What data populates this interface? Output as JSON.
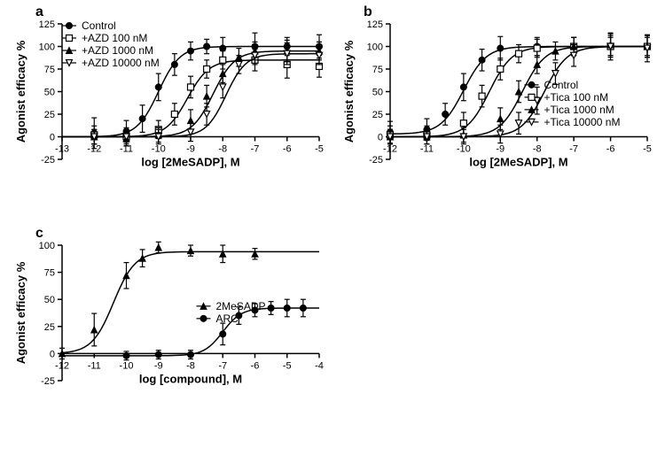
{
  "panels": {
    "a": {
      "label": "a",
      "type": "scatter-doseresponse",
      "x_title": "log [2MeSADP], M",
      "y_title": "Agonist efficacy %",
      "xlim": [
        -13,
        -5
      ],
      "ylim": [
        -25,
        125
      ],
      "xticks": [
        -13,
        -12,
        -11,
        -10,
        -9,
        -8,
        -7,
        -6,
        -5
      ],
      "yticks": [
        -25,
        0,
        25,
        50,
        75,
        100,
        125
      ],
      "background_color": "#ffffff",
      "axis_color": "#000000",
      "legend_pos": "top-left",
      "series": [
        {
          "name": "Control",
          "marker": "circle-filled",
          "color": "#000000",
          "points": [
            {
              "x": -12,
              "y": 4,
              "err": 17
            },
            {
              "x": -11,
              "y": 6,
              "err": 12
            },
            {
              "x": -10.5,
              "y": 20,
              "err": 15
            },
            {
              "x": -10,
              "y": 55,
              "err": 15
            },
            {
              "x": -9.5,
              "y": 80,
              "err": 12
            },
            {
              "x": -9,
              "y": 95,
              "err": 10
            },
            {
              "x": -8.5,
              "y": 100,
              "err": 8
            },
            {
              "x": -8,
              "y": 98,
              "err": 12
            },
            {
              "x": -7,
              "y": 100,
              "err": 15
            },
            {
              "x": -6,
              "y": 100,
              "err": 10
            },
            {
              "x": -5,
              "y": 100,
              "err": 13
            }
          ],
          "ec50": -10,
          "hill": 1.3,
          "bottom": 0,
          "top": 100
        },
        {
          "name": "+AZD 100 nM",
          "marker": "square-open",
          "color": "#000000",
          "points": [
            {
              "x": -12,
              "y": 2,
              "err": 10
            },
            {
              "x": -11,
              "y": 0,
              "err": 10
            },
            {
              "x": -10,
              "y": 8,
              "err": 10
            },
            {
              "x": -9.5,
              "y": 25,
              "err": 12
            },
            {
              "x": -9,
              "y": 55,
              "err": 12
            },
            {
              "x": -8.5,
              "y": 75,
              "err": 10
            },
            {
              "x": -8,
              "y": 85,
              "err": 10
            },
            {
              "x": -7,
              "y": 85,
              "err": 12
            },
            {
              "x": -6,
              "y": 80,
              "err": 15
            },
            {
              "x": -5,
              "y": 78,
              "err": 12
            }
          ],
          "ec50": -9.1,
          "hill": 1.3,
          "bottom": 0,
          "top": 85
        },
        {
          "name": "+AZD 1000 nM",
          "marker": "triangle-filled",
          "color": "#000000",
          "points": [
            {
              "x": -12,
              "y": 0,
              "err": 8
            },
            {
              "x": -11,
              "y": -2,
              "err": 8
            },
            {
              "x": -10,
              "y": 2,
              "err": 8
            },
            {
              "x": -9,
              "y": 18,
              "err": 12
            },
            {
              "x": -8.5,
              "y": 45,
              "err": 12
            },
            {
              "x": -8,
              "y": 70,
              "err": 10
            },
            {
              "x": -7.5,
              "y": 88,
              "err": 10
            },
            {
              "x": -7,
              "y": 95,
              "err": 10
            },
            {
              "x": -6,
              "y": 95,
              "err": 12
            },
            {
              "x": -5,
              "y": 95,
              "err": 10
            }
          ],
          "ec50": -8.3,
          "hill": 1.3,
          "bottom": 0,
          "top": 95
        },
        {
          "name": "+AZD 10000 nM",
          "marker": "triangle-down-open",
          "color": "#000000",
          "points": [
            {
              "x": -12,
              "y": 0,
              "err": 8
            },
            {
              "x": -11,
              "y": 0,
              "err": 8
            },
            {
              "x": -10,
              "y": 0,
              "err": 8
            },
            {
              "x": -9,
              "y": 5,
              "err": 10
            },
            {
              "x": -8.5,
              "y": 25,
              "err": 12
            },
            {
              "x": -8,
              "y": 55,
              "err": 12
            },
            {
              "x": -7.5,
              "y": 80,
              "err": 10
            },
            {
              "x": -7,
              "y": 90,
              "err": 10
            },
            {
              "x": -6,
              "y": 92,
              "err": 12
            },
            {
              "x": -5,
              "y": 90,
              "err": 10
            }
          ],
          "ec50": -7.9,
          "hill": 1.4,
          "bottom": 0,
          "top": 92
        }
      ]
    },
    "b": {
      "label": "b",
      "type": "scatter-doseresponse",
      "x_title": "log [2MeSADP], M",
      "y_title": "Agonist efficacy %",
      "xlim": [
        -12,
        -5
      ],
      "ylim": [
        -25,
        125
      ],
      "xticks": [
        -12,
        -11,
        -10,
        -9,
        -8,
        -7,
        -6,
        -5
      ],
      "yticks": [
        -25,
        0,
        25,
        50,
        75,
        100,
        125
      ],
      "background_color": "#ffffff",
      "axis_color": "#000000",
      "legend_pos": "mid-right",
      "series": [
        {
          "name": "Control",
          "marker": "circle-filled",
          "color": "#000000",
          "points": [
            {
              "x": -12,
              "y": 5,
              "err": 12
            },
            {
              "x": -11,
              "y": 8,
              "err": 12
            },
            {
              "x": -10.5,
              "y": 25,
              "err": 12
            },
            {
              "x": -10,
              "y": 55,
              "err": 15
            },
            {
              "x": -9.5,
              "y": 85,
              "err": 12
            },
            {
              "x": -9,
              "y": 98,
              "err": 13
            },
            {
              "x": -8,
              "y": 100,
              "err": 10
            },
            {
              "x": -7,
              "y": 100,
              "err": 10
            },
            {
              "x": -6,
              "y": 100,
              "err": 10
            },
            {
              "x": -5,
              "y": 100,
              "err": 12
            }
          ],
          "ec50": -10,
          "hill": 1.4,
          "bottom": 3,
          "top": 100
        },
        {
          "name": "+Tica 100 nM",
          "marker": "square-open",
          "color": "#000000",
          "points": [
            {
              "x": -12,
              "y": 2,
              "err": 10
            },
            {
              "x": -11,
              "y": 2,
              "err": 10
            },
            {
              "x": -10,
              "y": 15,
              "err": 12
            },
            {
              "x": -9.5,
              "y": 45,
              "err": 12
            },
            {
              "x": -9,
              "y": 75,
              "err": 12
            },
            {
              "x": -8.5,
              "y": 92,
              "err": 10
            },
            {
              "x": -8,
              "y": 98,
              "err": 10
            },
            {
              "x": -7,
              "y": 100,
              "err": 10
            },
            {
              "x": -6,
              "y": 100,
              "err": 12
            },
            {
              "x": -5,
              "y": 100,
              "err": 10
            }
          ],
          "ec50": -9.3,
          "hill": 1.4,
          "bottom": 0,
          "top": 100
        },
        {
          "name": "+Tica 1000 nM",
          "marker": "triangle-filled",
          "color": "#000000",
          "points": [
            {
              "x": -12,
              "y": 0,
              "err": 8
            },
            {
              "x": -11,
              "y": 0,
              "err": 8
            },
            {
              "x": -10,
              "y": 2,
              "err": 8
            },
            {
              "x": -9,
              "y": 20,
              "err": 12
            },
            {
              "x": -8.5,
              "y": 50,
              "err": 12
            },
            {
              "x": -8,
              "y": 80,
              "err": 10
            },
            {
              "x": -7.5,
              "y": 95,
              "err": 10
            },
            {
              "x": -7,
              "y": 100,
              "err": 10
            },
            {
              "x": -6,
              "y": 102,
              "err": 12
            },
            {
              "x": -5,
              "y": 100,
              "err": 12
            }
          ],
          "ec50": -8.4,
          "hill": 1.4,
          "bottom": 0,
          "top": 100
        },
        {
          "name": "+Tica 10000 nM",
          "marker": "triangle-down-open",
          "color": "#000000",
          "points": [
            {
              "x": -12,
              "y": 0,
              "err": 8
            },
            {
              "x": -11,
              "y": 0,
              "err": 8
            },
            {
              "x": -10,
              "y": 0,
              "err": 8
            },
            {
              "x": -9,
              "y": 3,
              "err": 10
            },
            {
              "x": -8.5,
              "y": 15,
              "err": 12
            },
            {
              "x": -8,
              "y": 40,
              "err": 15
            },
            {
              "x": -7.5,
              "y": 70,
              "err": 12
            },
            {
              "x": -7,
              "y": 90,
              "err": 12
            },
            {
              "x": -6,
              "y": 100,
              "err": 15
            },
            {
              "x": -5,
              "y": 98,
              "err": 15
            }
          ],
          "ec50": -7.8,
          "hill": 1.4,
          "bottom": 0,
          "top": 100
        }
      ]
    },
    "c": {
      "label": "c",
      "type": "scatter-doseresponse",
      "x_title": "log [compound], M",
      "y_title": "Agonist efficacy %",
      "xlim": [
        -12,
        -4
      ],
      "ylim": [
        -25,
        100
      ],
      "xticks": [
        -12,
        -11,
        -10,
        -9,
        -8,
        -7,
        -6,
        -5,
        -4
      ],
      "yticks": [
        -25,
        0,
        25,
        50,
        75,
        100
      ],
      "background_color": "#ffffff",
      "axis_color": "#000000",
      "legend_pos": "mid-right",
      "series": [
        {
          "name": "2MeSADP",
          "marker": "triangle-filled",
          "color": "#000000",
          "points": [
            {
              "x": -12,
              "y": 0,
              "err": 5
            },
            {
              "x": -11,
              "y": 22,
              "err": 15
            },
            {
              "x": -10,
              "y": 72,
              "err": 12
            },
            {
              "x": -9.5,
              "y": 88,
              "err": 8
            },
            {
              "x": -9,
              "y": 98,
              "err": 5
            },
            {
              "x": -8,
              "y": 95,
              "err": 5
            },
            {
              "x": -7,
              "y": 92,
              "err": 8
            },
            {
              "x": -6,
              "y": 92,
              "err": 5
            }
          ],
          "ec50": -10.4,
          "hill": 1.3,
          "bottom": 0,
          "top": 94
        },
        {
          "name": "ARC",
          "marker": "circle-filled",
          "color": "#000000",
          "points": [
            {
              "x": -10,
              "y": -2,
              "err": 4
            },
            {
              "x": -9,
              "y": -1,
              "err": 4
            },
            {
              "x": -8,
              "y": -1,
              "err": 4
            },
            {
              "x": -7,
              "y": 18,
              "err": 10
            },
            {
              "x": -6.5,
              "y": 35,
              "err": 8
            },
            {
              "x": -6,
              "y": 40,
              "err": 6
            },
            {
              "x": -5.5,
              "y": 42,
              "err": 6
            },
            {
              "x": -5,
              "y": 42,
              "err": 8
            },
            {
              "x": -4.5,
              "y": 42,
              "err": 8
            }
          ],
          "ec50": -7,
          "hill": 1.5,
          "bottom": -2,
          "top": 42
        }
      ]
    }
  }
}
